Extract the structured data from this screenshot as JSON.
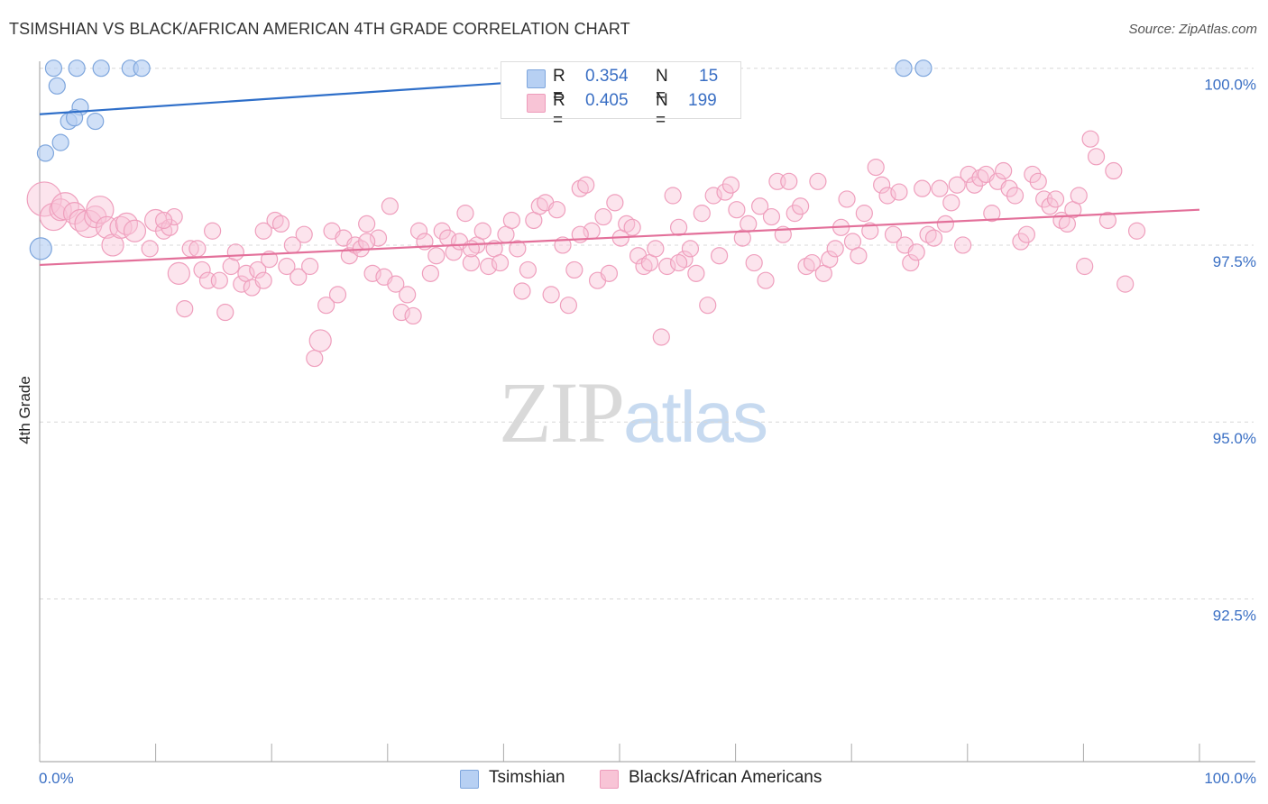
{
  "title": "TSIMSHIAN VS BLACK/AFRICAN AMERICAN 4TH GRADE CORRELATION CHART",
  "source": "Source: ZipAtlas.com",
  "watermark": {
    "zip": "ZIP",
    "atlas": "atlas"
  },
  "colors": {
    "blue": "#5b8fd6",
    "blue_fill": "#b7d0f3",
    "pink": "#e8719d",
    "pink_fill": "#f8c4d6",
    "axis_text": "#3a6fc4"
  },
  "legend": {
    "rows": [
      {
        "r_label": "R =",
        "r_value": "0.354",
        "n_label": "N =",
        "n_value": "15"
      },
      {
        "r_label": "R =",
        "r_value": "0.405",
        "n_label": "N =",
        "n_value": "199"
      }
    ]
  },
  "bottom_legend": [
    {
      "label": "Tsimshian"
    },
    {
      "label": "Blacks/African Americans"
    }
  ],
  "chart_data": {
    "type": "scatter",
    "title": "TSIMSHIAN VS BLACK/AFRICAN AMERICAN 4TH GRADE CORRELATION CHART",
    "xlabel": "",
    "ylabel": "4th Grade",
    "xlim": [
      0,
      100
    ],
    "ylim": [
      90.2,
      100.2
    ],
    "y_ticks": [
      {
        "value": 100.0,
        "label": "100.0%"
      },
      {
        "value": 97.5,
        "label": "97.5%"
      },
      {
        "value": 95.0,
        "label": "95.0%"
      },
      {
        "value": 92.5,
        "label": "92.5%"
      }
    ],
    "x_tick_labels": {
      "left": "0.0%",
      "right": "100.0%"
    },
    "x_minor_ticks": [
      0,
      10,
      20,
      30,
      40,
      50,
      60,
      70,
      80,
      90,
      100
    ],
    "series": [
      {
        "name": "Tsimshian",
        "color": "blue",
        "trend": {
          "x0": 0,
          "y0": 99.35,
          "x1": 100,
          "y1": 100.45
        },
        "points": [
          [
            1.2,
            100.0,
            1
          ],
          [
            3.2,
            100.0,
            1
          ],
          [
            5.3,
            100.0,
            1
          ],
          [
            7.8,
            100.0,
            1
          ],
          [
            8.8,
            100.0,
            1
          ],
          [
            1.5,
            99.75,
            1
          ],
          [
            3.5,
            99.45,
            1
          ],
          [
            2.5,
            99.25,
            1
          ],
          [
            3.0,
            99.3,
            1
          ],
          [
            4.8,
            99.25,
            1
          ],
          [
            1.8,
            98.95,
            1
          ],
          [
            0.5,
            98.8,
            1
          ],
          [
            0.1,
            97.45,
            2
          ],
          [
            74.5,
            100.0,
            1
          ],
          [
            76.2,
            100.0,
            1
          ]
        ]
      },
      {
        "name": "Blacks/African Americans",
        "color": "pink",
        "trend": {
          "x0": 0,
          "y0": 97.22,
          "x1": 100,
          "y1": 98.0
        },
        "points": [
          [
            0.4,
            98.15,
            4
          ],
          [
            1.2,
            97.9,
            3
          ],
          [
            1.8,
            98.0,
            2
          ],
          [
            2.2,
            98.05,
            3
          ],
          [
            3.0,
            97.95,
            2
          ],
          [
            3.5,
            97.85,
            2
          ],
          [
            4.2,
            97.8,
            3
          ],
          [
            4.8,
            97.9,
            2
          ],
          [
            5.2,
            98.0,
            3
          ],
          [
            5.8,
            97.75,
            2
          ],
          [
            6.3,
            97.5,
            2
          ],
          [
            7.0,
            97.75,
            2
          ],
          [
            7.5,
            97.8,
            2
          ],
          [
            8.2,
            97.7,
            2
          ],
          [
            9.5,
            97.45,
            1
          ],
          [
            10.0,
            97.85,
            2
          ],
          [
            10.7,
            97.7,
            1
          ],
          [
            11.2,
            97.75,
            1
          ],
          [
            11.6,
            97.9,
            1
          ],
          [
            12.0,
            97.1,
            2
          ],
          [
            12.5,
            96.6,
            1
          ],
          [
            13.0,
            97.45,
            1
          ],
          [
            13.6,
            97.45,
            1
          ],
          [
            14.0,
            97.15,
            1
          ],
          [
            14.5,
            97.0,
            1
          ],
          [
            14.9,
            97.7,
            1
          ],
          [
            15.5,
            97.0,
            1
          ],
          [
            16.0,
            96.55,
            1
          ],
          [
            16.5,
            97.2,
            1
          ],
          [
            16.9,
            97.4,
            1
          ],
          [
            17.4,
            96.95,
            1
          ],
          [
            17.8,
            97.1,
            1
          ],
          [
            18.3,
            96.9,
            1
          ],
          [
            18.8,
            97.15,
            1
          ],
          [
            19.3,
            97.0,
            1
          ],
          [
            19.8,
            97.3,
            1
          ],
          [
            20.3,
            97.85,
            1
          ],
          [
            20.8,
            97.8,
            1
          ],
          [
            21.3,
            97.2,
            1
          ],
          [
            21.8,
            97.5,
            1
          ],
          [
            22.3,
            97.05,
            1
          ],
          [
            22.8,
            97.65,
            1
          ],
          [
            23.3,
            97.2,
            1
          ],
          [
            23.7,
            95.9,
            1
          ],
          [
            24.2,
            96.15,
            2
          ],
          [
            24.7,
            96.65,
            1
          ],
          [
            25.2,
            97.7,
            1
          ],
          [
            25.7,
            96.8,
            1
          ],
          [
            26.2,
            97.6,
            1
          ],
          [
            26.7,
            97.35,
            1
          ],
          [
            27.2,
            97.5,
            1
          ],
          [
            27.7,
            97.45,
            1
          ],
          [
            28.2,
            97.8,
            1
          ],
          [
            28.7,
            97.1,
            1
          ],
          [
            29.2,
            97.6,
            1
          ],
          [
            29.7,
            97.05,
            1
          ],
          [
            30.2,
            98.05,
            1
          ],
          [
            30.7,
            96.95,
            1
          ],
          [
            31.2,
            96.55,
            1
          ],
          [
            31.7,
            96.8,
            1
          ],
          [
            32.2,
            96.5,
            1
          ],
          [
            32.7,
            97.7,
            1
          ],
          [
            33.2,
            97.55,
            1
          ],
          [
            33.7,
            97.1,
            1
          ],
          [
            34.2,
            97.35,
            1
          ],
          [
            34.7,
            97.7,
            1
          ],
          [
            35.2,
            97.6,
            1
          ],
          [
            35.7,
            97.4,
            1
          ],
          [
            36.2,
            97.55,
            1
          ],
          [
            36.7,
            97.95,
            1
          ],
          [
            37.2,
            97.25,
            1
          ],
          [
            37.7,
            97.5,
            1
          ],
          [
            38.2,
            97.7,
            1
          ],
          [
            38.7,
            97.2,
            1
          ],
          [
            39.2,
            97.45,
            1
          ],
          [
            39.7,
            97.25,
            1
          ],
          [
            40.2,
            97.65,
            1
          ],
          [
            40.7,
            97.85,
            1
          ],
          [
            41.2,
            97.45,
            1
          ],
          [
            41.6,
            96.85,
            1
          ],
          [
            42.1,
            97.15,
            1
          ],
          [
            42.6,
            97.85,
            1
          ],
          [
            43.1,
            98.05,
            1
          ],
          [
            43.6,
            98.1,
            1
          ],
          [
            44.1,
            96.8,
            1
          ],
          [
            44.6,
            98.0,
            1
          ],
          [
            45.1,
            97.5,
            1
          ],
          [
            45.6,
            96.65,
            1
          ],
          [
            46.1,
            97.15,
            1
          ],
          [
            46.6,
            98.3,
            1
          ],
          [
            47.1,
            98.35,
            1
          ],
          [
            47.6,
            97.7,
            1
          ],
          [
            48.1,
            97.0,
            1
          ],
          [
            48.6,
            97.9,
            1
          ],
          [
            49.1,
            97.1,
            1
          ],
          [
            49.6,
            98.1,
            1
          ],
          [
            50.1,
            97.6,
            1
          ],
          [
            50.6,
            97.8,
            1
          ],
          [
            51.1,
            97.75,
            1
          ],
          [
            51.6,
            97.35,
            1
          ],
          [
            52.1,
            97.2,
            1
          ],
          [
            52.6,
            97.25,
            1
          ],
          [
            53.1,
            97.45,
            1
          ],
          [
            53.6,
            96.2,
            1
          ],
          [
            54.1,
            97.2,
            1
          ],
          [
            54.6,
            98.2,
            1
          ],
          [
            55.1,
            97.75,
            1
          ],
          [
            55.6,
            97.3,
            1
          ],
          [
            56.1,
            97.45,
            1
          ],
          [
            56.6,
            97.1,
            1
          ],
          [
            57.1,
            97.95,
            1
          ],
          [
            57.6,
            96.65,
            1
          ],
          [
            58.1,
            98.2,
            1
          ],
          [
            58.6,
            97.35,
            1
          ],
          [
            59.1,
            98.25,
            1
          ],
          [
            59.6,
            98.35,
            1
          ],
          [
            60.1,
            98.0,
            1
          ],
          [
            60.6,
            97.6,
            1
          ],
          [
            61.1,
            97.8,
            1
          ],
          [
            61.6,
            97.25,
            1
          ],
          [
            62.1,
            98.05,
            1
          ],
          [
            62.6,
            97.0,
            1
          ],
          [
            63.1,
            97.9,
            1
          ],
          [
            63.6,
            98.4,
            1
          ],
          [
            64.1,
            97.65,
            1
          ],
          [
            64.6,
            98.4,
            1
          ],
          [
            65.1,
            97.95,
            1
          ],
          [
            65.6,
            98.05,
            1
          ],
          [
            66.1,
            97.2,
            1
          ],
          [
            66.6,
            97.25,
            1
          ],
          [
            67.1,
            98.4,
            1
          ],
          [
            67.6,
            97.1,
            1
          ],
          [
            68.1,
            97.3,
            1
          ],
          [
            68.6,
            97.45,
            1
          ],
          [
            69.1,
            97.75,
            1
          ],
          [
            69.6,
            98.15,
            1
          ],
          [
            70.1,
            97.55,
            1
          ],
          [
            70.6,
            97.35,
            1
          ],
          [
            71.1,
            97.95,
            1
          ],
          [
            71.6,
            97.7,
            1
          ],
          [
            72.1,
            98.6,
            1
          ],
          [
            72.6,
            98.35,
            1
          ],
          [
            73.1,
            98.2,
            1
          ],
          [
            73.6,
            97.65,
            1
          ],
          [
            74.1,
            98.25,
            1
          ],
          [
            74.6,
            97.5,
            1
          ],
          [
            75.1,
            97.25,
            1
          ],
          [
            75.6,
            97.4,
            1
          ],
          [
            76.1,
            98.3,
            1
          ],
          [
            76.6,
            97.65,
            1
          ],
          [
            77.1,
            97.6,
            1
          ],
          [
            77.6,
            98.3,
            1
          ],
          [
            78.1,
            97.8,
            1
          ],
          [
            78.6,
            98.1,
            1
          ],
          [
            79.1,
            98.35,
            1
          ],
          [
            79.6,
            97.5,
            1
          ],
          [
            80.1,
            98.5,
            1
          ],
          [
            80.6,
            98.35,
            1
          ],
          [
            81.1,
            98.45,
            1
          ],
          [
            81.6,
            98.5,
            1
          ],
          [
            82.1,
            97.95,
            1
          ],
          [
            82.6,
            98.4,
            1
          ],
          [
            83.1,
            98.55,
            1
          ],
          [
            83.6,
            98.3,
            1
          ],
          [
            84.1,
            98.2,
            1
          ],
          [
            84.6,
            97.55,
            1
          ],
          [
            85.1,
            97.65,
            1
          ],
          [
            85.6,
            98.5,
            1
          ],
          [
            86.1,
            98.4,
            1
          ],
          [
            86.6,
            98.15,
            1
          ],
          [
            87.1,
            98.05,
            1
          ],
          [
            87.6,
            98.15,
            1
          ],
          [
            88.1,
            97.85,
            1
          ],
          [
            88.6,
            97.8,
            1
          ],
          [
            89.1,
            98.0,
            1
          ],
          [
            89.6,
            98.2,
            1
          ],
          [
            90.1,
            97.2,
            1
          ],
          [
            90.6,
            99.0,
            1
          ],
          [
            91.1,
            98.75,
            1
          ],
          [
            92.1,
            97.85,
            1
          ],
          [
            92.6,
            98.55,
            1
          ],
          [
            93.6,
            96.95,
            1
          ],
          [
            94.6,
            97.7,
            1
          ],
          [
            55.1,
            97.25,
            1
          ],
          [
            46.6,
            97.65,
            1
          ],
          [
            37.2,
            97.45,
            1
          ],
          [
            28.2,
            97.55,
            1
          ],
          [
            19.3,
            97.7,
            1
          ],
          [
            10.7,
            97.85,
            1
          ]
        ]
      }
    ]
  }
}
